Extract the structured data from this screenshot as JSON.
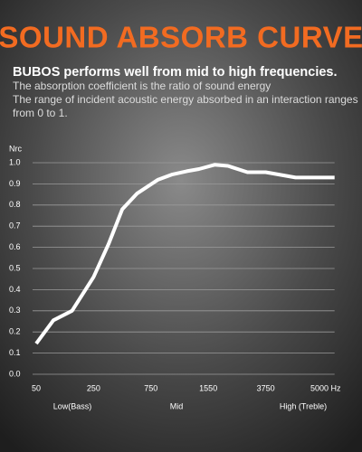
{
  "chart_data": {
    "type": "line",
    "title": "SOUND ABSORB CURVE",
    "subtitle": "BUBOS performs well from mid to high frequencies.",
    "description": [
      "The absorption coefficient is the ratio of sound energy",
      "The range of incident acoustic energy absorbed in an interaction ranges",
      "from 0 to 1."
    ],
    "y_label": "Nrc",
    "x_group_labels": [
      "Low(Bass)",
      "Mid",
      "High  (Treble)"
    ],
    "x": [
      50,
      110,
      175,
      250,
      380,
      500,
      630,
      850,
      1050,
      1250,
      1420,
      1790,
      2300,
      3050,
      3750,
      4400,
      5250
    ],
    "series": [
      {
        "name": "Nrc",
        "color": "#ffffff",
        "values": [
          0.145,
          0.255,
          0.3,
          0.46,
          0.615,
          0.78,
          0.855,
          0.92,
          0.945,
          0.96,
          0.97,
          0.99,
          0.985,
          0.955,
          0.955,
          0.93,
          0.93
        ]
      }
    ],
    "xlim": [
      50,
      5250
    ],
    "xticks": [
      50,
      250,
      750,
      1550,
      3750,
      {
        "value": 5000,
        "label": "5000 Hz"
      }
    ],
    "ylim": [
      0,
      1
    ],
    "yticks": [
      {
        "value": 0,
        "label": "0.0"
      },
      0.1,
      0.2,
      0.3,
      0.4,
      0.5,
      0.6,
      0.7,
      0.8,
      0.9,
      {
        "value": 1,
        "label": "1.0"
      }
    ],
    "grid": true
  }
}
